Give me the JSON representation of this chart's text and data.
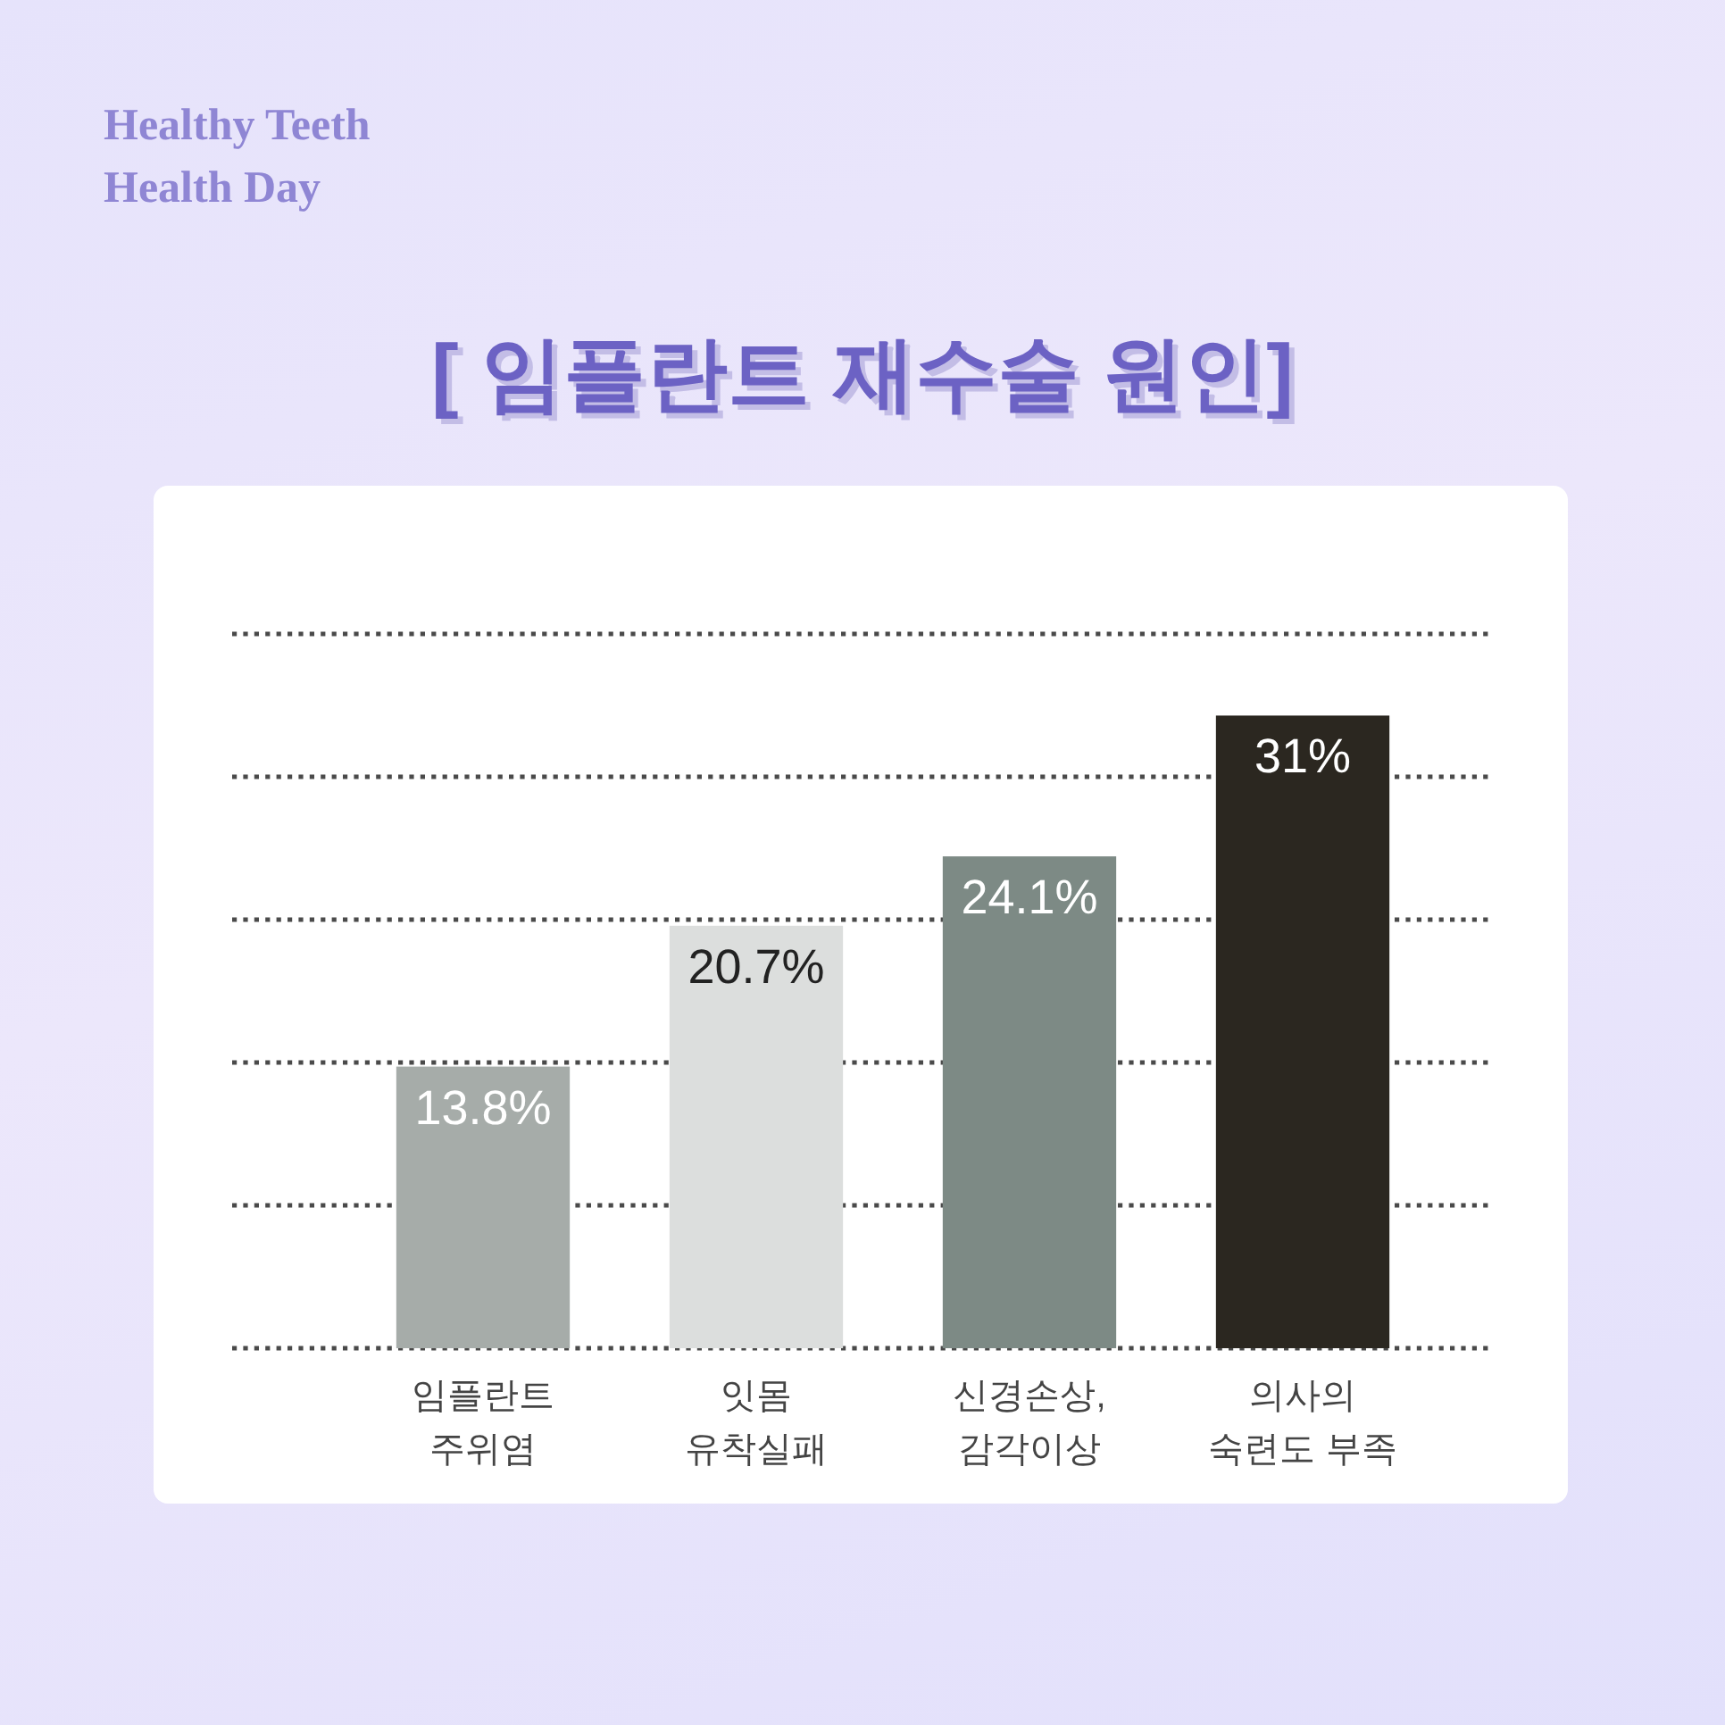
{
  "chart_data": {
    "type": "bar",
    "title": "[ 임플란트 재수술 원인]",
    "annotations": [
      "Healthy Teeth\nHealth Day"
    ],
    "categories": [
      "임플란트\n주위염",
      "잇몸\n유착실패",
      "신경손상,\n감각이상",
      "의사의\n숙련도 부족"
    ],
    "values": [
      13.8,
      20.7,
      24.1,
      31
    ],
    "colors": [
      "#a6aca9",
      "#dcdedd",
      "#7d8a85",
      "#2b2720"
    ],
    "value_labels": [
      "13.8%",
      "20.7%",
      "24.1%",
      "31%"
    ],
    "ylim": [
      0,
      35
    ],
    "yticks": [
      {
        "value": 0,
        "label": null
      },
      {
        "value": 7,
        "label": null
      },
      {
        "value": 14,
        "label": null
      },
      {
        "value": 21,
        "label": null
      },
      {
        "value": 28,
        "label": null
      },
      {
        "value": 35,
        "label": null
      }
    ],
    "grid": "y",
    "tick_labels": "x"
  }
}
